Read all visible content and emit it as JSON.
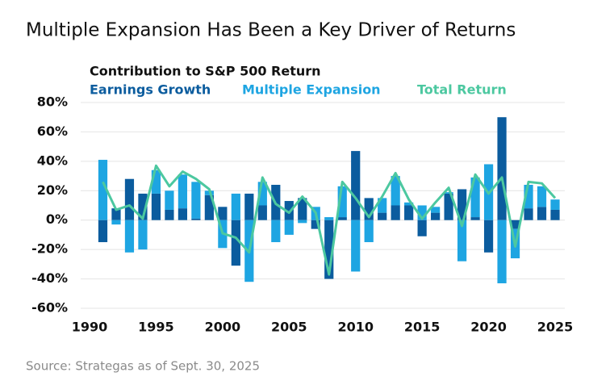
{
  "chart_data": {
    "type": "bar",
    "title": "Multiple Expansion Has Been a Key Driver of Returns",
    "subtitle": "Contribution to S&P 500 Return",
    "source": "Source: Strategas as of Sept. 30, 2025",
    "x": [
      1991,
      1992,
      1993,
      1994,
      1995,
      1996,
      1997,
      1998,
      1999,
      2000,
      2001,
      2002,
      2003,
      2004,
      2005,
      2006,
      2007,
      2008,
      2009,
      2010,
      2011,
      2012,
      2013,
      2014,
      2015,
      2016,
      2017,
      2018,
      2019,
      2020,
      2021,
      2022,
      2023,
      2024,
      2025
    ],
    "series": [
      {
        "name": "Earnings Growth",
        "color": "#0b5c9e",
        "type": "bar",
        "values": [
          -15,
          8,
          28,
          18,
          18,
          7,
          8,
          1,
          17,
          9,
          -31,
          18,
          10,
          24,
          13,
          15,
          -6,
          -40,
          2,
          47,
          15,
          5,
          10,
          10,
          -11,
          5,
          18,
          21,
          2,
          -22,
          70,
          -6,
          8,
          9,
          7
        ]
      },
      {
        "name": "Multiple Expansion",
        "color": "#1ea5e2",
        "type": "bar",
        "values": [
          41,
          -3,
          -22,
          -20,
          16,
          13,
          23,
          25,
          3,
          -19,
          18,
          -42,
          16,
          -15,
          -10,
          -2,
          9,
          2,
          21,
          -35,
          -15,
          10,
          20,
          2,
          10,
          4,
          1,
          -28,
          27,
          38,
          -43,
          -20,
          16,
          14,
          7
        ]
      },
      {
        "name": "Total Return",
        "color": "#4cc8a0",
        "type": "line",
        "values": [
          26,
          7,
          10,
          1,
          37,
          23,
          33,
          28,
          21,
          -9,
          -12,
          -22,
          29,
          11,
          5,
          16,
          5,
          -37,
          26,
          15,
          2,
          16,
          32,
          14,
          1,
          12,
          22,
          -4,
          31,
          18,
          29,
          -18,
          26,
          25,
          15
        ]
      }
    ],
    "xlim": [
      1990,
      2025
    ],
    "xticks": [
      1990,
      1995,
      2000,
      2005,
      2010,
      2015,
      2020,
      2025
    ],
    "ylim": [
      -60,
      80
    ],
    "yticks": [
      {
        "value": -60,
        "label": "-60%"
      },
      {
        "value": -40,
        "label": "-40%"
      },
      {
        "value": -20,
        "label": "-20%"
      },
      {
        "value": 0,
        "label": "0%"
      },
      {
        "value": 20,
        "label": "20%"
      },
      {
        "value": 40,
        "label": "40%"
      },
      {
        "value": 60,
        "label": "60%"
      },
      {
        "value": 80,
        "label": "80%"
      }
    ],
    "grid": true
  }
}
